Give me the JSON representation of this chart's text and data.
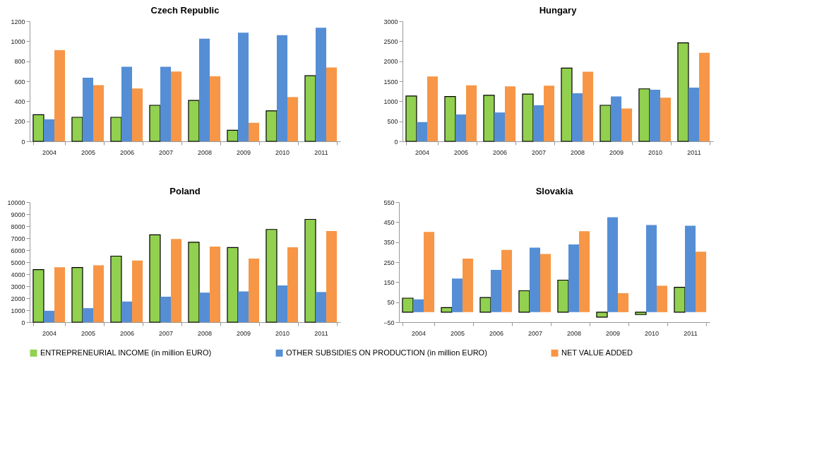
{
  "chart_data": [
    {
      "type": "bar",
      "title": "Czech Republic",
      "categories": [
        "2004",
        "2005",
        "2006",
        "2007",
        "2008",
        "2009",
        "2010",
        "2011"
      ],
      "ylim": [
        0,
        1200
      ],
      "yticks": [
        0,
        200,
        400,
        600,
        800,
        1000,
        1200
      ],
      "grid": false,
      "legend": "bottom",
      "series": [
        {
          "name": "ENTREPRENEURIAL INCOME (in million EURO)",
          "color": "#92d050",
          "values": [
            265,
            240,
            240,
            360,
            408,
            110,
            305,
            655
          ]
        },
        {
          "name": "OTHER SUBSIDIES ON PRODUCTION (in million EURO)",
          "color": "#558ed5",
          "values": [
            220,
            635,
            745,
            745,
            1025,
            1085,
            1060,
            1135
          ]
        },
        {
          "name": "NET VALUE ADDED",
          "color": "#f79646",
          "values": [
            910,
            562,
            528,
            697,
            650,
            185,
            442,
            737
          ]
        }
      ]
    },
    {
      "type": "bar",
      "title": "Hungary",
      "categories": [
        "2004",
        "2005",
        "2006",
        "2007",
        "2008",
        "2009",
        "2010",
        "2011"
      ],
      "ylim": [
        0,
        3000
      ],
      "yticks": [
        0,
        500,
        1000,
        1500,
        2000,
        2500,
        3000
      ],
      "grid": false,
      "legend": "bottom",
      "series": [
        {
          "name": "ENTREPRENEURIAL INCOME (in million EURO)",
          "color": "#92d050",
          "values": [
            1130,
            1120,
            1150,
            1180,
            1830,
            900,
            1310,
            2460
          ]
        },
        {
          "name": "OTHER SUBSIDIES ON PRODUCTION (in million EURO)",
          "color": "#558ed5",
          "values": [
            480,
            670,
            720,
            900,
            1200,
            1120,
            1290,
            1340
          ]
        },
        {
          "name": "NET VALUE ADDED",
          "color": "#f79646",
          "values": [
            1620,
            1400,
            1370,
            1390,
            1740,
            820,
            1090,
            2210
          ]
        }
      ]
    },
    {
      "type": "bar",
      "title": "Poland",
      "categories": [
        "2004",
        "2005",
        "2006",
        "2007",
        "2008",
        "2009",
        "2010",
        "2011"
      ],
      "ylim": [
        0,
        10000
      ],
      "yticks": [
        0,
        1000,
        2000,
        3000,
        4000,
        5000,
        6000,
        7000,
        8000,
        9000,
        10000
      ],
      "grid": false,
      "legend": "bottom",
      "series": [
        {
          "name": "ENTREPRENEURIAL INCOME (in million EURO)",
          "color": "#92d050",
          "values": [
            4380,
            4550,
            5500,
            7270,
            6660,
            6210,
            7720,
            8560
          ]
        },
        {
          "name": "OTHER SUBSIDIES ON PRODUCTION (in million EURO)",
          "color": "#558ed5",
          "values": [
            950,
            1170,
            1720,
            2120,
            2460,
            2560,
            3060,
            2510
          ]
        },
        {
          "name": "NET VALUE ADDED",
          "color": "#f79646",
          "values": [
            4570,
            4740,
            5130,
            6920,
            6290,
            5300,
            6230,
            7590
          ]
        }
      ]
    },
    {
      "type": "bar",
      "title": "Slovakia",
      "categories": [
        "2004",
        "2005",
        "2006",
        "2007",
        "2008",
        "2009",
        "2010",
        "2011"
      ],
      "ylim": [
        -50,
        550
      ],
      "yticks": [
        -50,
        50,
        150,
        250,
        350,
        450,
        550
      ],
      "grid": false,
      "legend": "bottom",
      "series": [
        {
          "name": "ENTREPRENEURIAL INCOME (in million EURO)",
          "color": "#92d050",
          "values": [
            70,
            23,
            73,
            107,
            160,
            -25,
            -12,
            124
          ]
        },
        {
          "name": "OTHER SUBSIDIES ON PRODUCTION (in million EURO)",
          "color": "#558ed5",
          "values": [
            64,
            168,
            211,
            322,
            338,
            474,
            435,
            432
          ]
        },
        {
          "name": "NET VALUE ADDED",
          "color": "#f79646",
          "values": [
            401,
            268,
            311,
            291,
            404,
            95,
            132,
            302
          ]
        }
      ]
    }
  ]
}
